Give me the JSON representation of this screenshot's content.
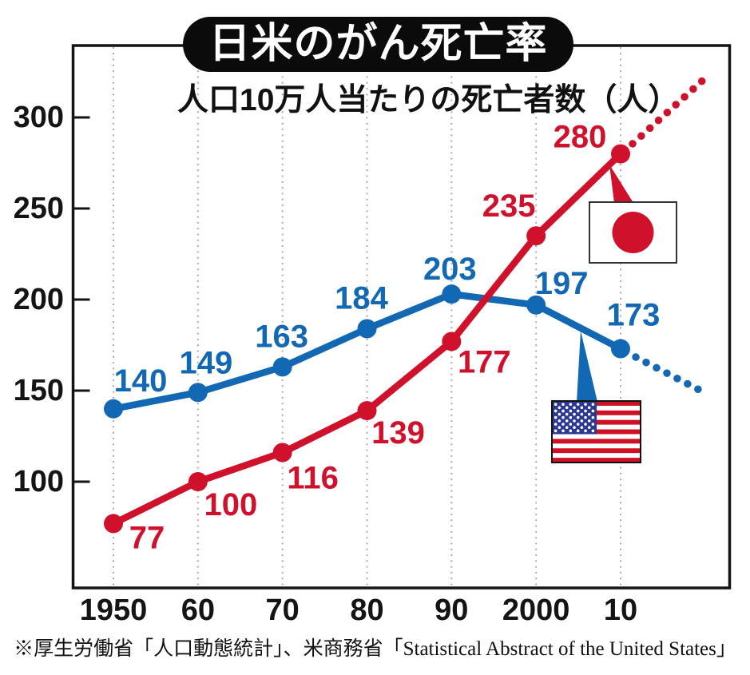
{
  "header": {
    "title": "日米のがん死亡率",
    "subtitle": "人口10万人当たりの死亡者数（人）"
  },
  "footer": {
    "source": "※厚生労働省「人口動態統計」、米商務省「Statistical Abstract of the United States」"
  },
  "chart_data": {
    "type": "line",
    "title": "日米のがん死亡率",
    "subtitle": "人口10万人当たりの死亡者数（人）",
    "categories": [
      "1950",
      "60",
      "70",
      "80",
      "90",
      "2000",
      "10"
    ],
    "y_ticks": [
      100,
      150,
      200,
      250,
      300
    ],
    "ylim": [
      40,
      340
    ],
    "grid": "vertical-dotted-gridlines",
    "legend": "flag-callouts-on-plot",
    "series": [
      {
        "name": "米国 (USA)",
        "flag_icon": "usa-flag-icon",
        "color": "#1268b3",
        "values": [
          140,
          149,
          163,
          184,
          203,
          197,
          173
        ],
        "future_trend": "declining-dotted-extension"
      },
      {
        "name": "日本 (Japan)",
        "flag_icon": "japan-flag-icon",
        "color": "#d0112b",
        "values": [
          77,
          100,
          116,
          139,
          177,
          235,
          280
        ],
        "future_trend": "rising-dotted-extension"
      }
    ],
    "source": "※厚生労働省「人口動態統計」、米商務省「Statistical Abstract of the United States」"
  },
  "colors": {
    "japan_red": "#d0112b",
    "usa_blue": "#1268b3",
    "axis_black": "#141414",
    "grid_gray": "#a3a3a3",
    "title_bg": "#0b0b0b",
    "title_text": "#ffffff",
    "us_flag_navy": "#2b3990",
    "us_flag_red": "#cf1126",
    "flag_border": "#333333"
  }
}
